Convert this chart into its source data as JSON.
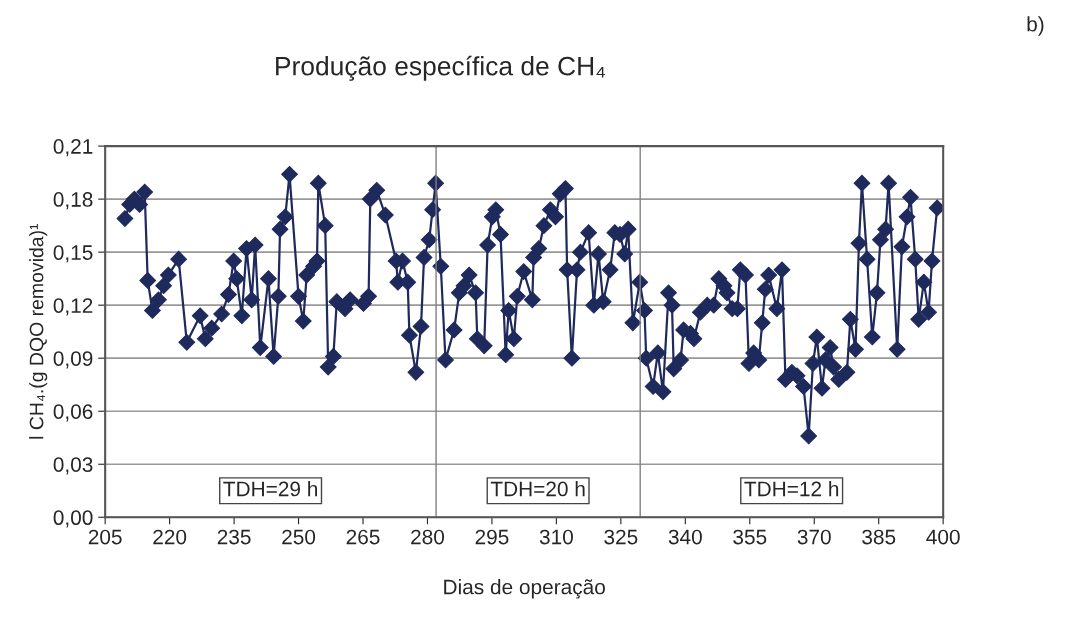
{
  "chart_data": {
    "type": "line",
    "title": "Produção específica de CH₄",
    "xlabel": "Dias de operação",
    "ylabel": "l CH₄.(g DQO removida)¹",
    "x": [
      209.6,
      210.7,
      211.8,
      213.0,
      214.2,
      214.9,
      216.0,
      217.4,
      218.6,
      219.7,
      222.1,
      224.0,
      227.1,
      228.3,
      229.8,
      232.1,
      233.7,
      234.9,
      235.6,
      236.8,
      237.9,
      239.1,
      239.9,
      241.1,
      243.0,
      244.2,
      245.3,
      245.7,
      246.9,
      247.9,
      250.0,
      251.1,
      251.9,
      253.5,
      254.3,
      254.6,
      256.2,
      256.9,
      258.1,
      258.9,
      260.8,
      262.0,
      265.1,
      266.3,
      266.7,
      268.2,
      270.2,
      272.7,
      273.1,
      274.2,
      275.4,
      275.8,
      277.3,
      278.5,
      279.2,
      280.4,
      281.2,
      281.9,
      283.1,
      284.2,
      286.2,
      287.4,
      288.5,
      289.7,
      291.2,
      291.6,
      293.2,
      294.0,
      295.1,
      295.9,
      297.0,
      298.2,
      298.9,
      300.1,
      300.9,
      302.4,
      304.4,
      304.7,
      305.9,
      307.1,
      308.6,
      309.8,
      310.9,
      312.1,
      312.5,
      313.6,
      314.8,
      315.6,
      317.5,
      318.7,
      319.8,
      320.9,
      322.5,
      323.6,
      324.8,
      325.9,
      326.7,
      327.8,
      329.4,
      330.5,
      330.9,
      332.5,
      333.6,
      334.8,
      336.1,
      336.9,
      337.3,
      338.9,
      339.6,
      341.2,
      342.0,
      343.5,
      345.1,
      346.6,
      347.8,
      349.0,
      349.7,
      350.9,
      352.1,
      352.8,
      354.0,
      354.8,
      355.9,
      357.1,
      357.9,
      358.6,
      359.4,
      361.3,
      362.5,
      363.3,
      364.8,
      366.0,
      367.5,
      368.7,
      369.7,
      370.6,
      371.8,
      372.6,
      373.7,
      374.5,
      375.7,
      377.6,
      378.4,
      379.6,
      380.4,
      381.1,
      382.3,
      383.5,
      384.6,
      385.4,
      386.6,
      387.3,
      389.3,
      390.4,
      391.6,
      392.4,
      393.5,
      394.3,
      395.5,
      396.6,
      397.4,
      398.6
    ],
    "values": [
      0.169,
      0.177,
      0.18,
      0.177,
      0.184,
      0.134,
      0.117,
      0.123,
      0.131,
      0.137,
      0.146,
      0.099,
      0.114,
      0.101,
      0.107,
      0.115,
      0.126,
      0.145,
      0.135,
      0.114,
      0.152,
      0.123,
      0.154,
      0.096,
      0.135,
      0.091,
      0.125,
      0.163,
      0.17,
      0.194,
      0.125,
      0.111,
      0.137,
      0.142,
      0.145,
      0.189,
      0.165,
      0.085,
      0.091,
      0.122,
      0.118,
      0.123,
      0.121,
      0.125,
      0.18,
      0.185,
      0.171,
      0.145,
      0.133,
      0.145,
      0.133,
      0.103,
      0.082,
      0.108,
      0.147,
      0.157,
      0.174,
      0.189,
      0.142,
      0.089,
      0.106,
      0.127,
      0.131,
      0.137,
      0.127,
      0.101,
      0.097,
      0.154,
      0.17,
      0.174,
      0.16,
      0.092,
      0.117,
      0.101,
      0.125,
      0.139,
      0.123,
      0.147,
      0.152,
      0.165,
      0.174,
      0.17,
      0.183,
      0.186,
      0.14,
      0.09,
      0.14,
      0.15,
      0.161,
      0.12,
      0.149,
      0.122,
      0.14,
      0.161,
      0.16,
      0.149,
      0.163,
      0.11,
      0.133,
      0.117,
      0.09,
      0.074,
      0.093,
      0.071,
      0.127,
      0.12,
      0.084,
      0.089,
      0.106,
      0.104,
      0.101,
      0.116,
      0.12,
      0.12,
      0.135,
      0.131,
      0.127,
      0.118,
      0.118,
      0.14,
      0.137,
      0.087,
      0.093,
      0.089,
      0.11,
      0.129,
      0.137,
      0.118,
      0.14,
      0.078,
      0.082,
      0.08,
      0.074,
      0.046,
      0.087,
      0.102,
      0.073,
      0.089,
      0.096,
      0.085,
      0.078,
      0.082,
      0.112,
      0.095,
      0.155,
      0.189,
      0.146,
      0.102,
      0.127,
      0.157,
      0.163,
      0.189,
      0.095,
      0.153,
      0.17,
      0.181,
      0.146,
      0.112,
      0.133,
      0.116,
      0.145,
      0.175
    ],
    "color": "#1f2a5c",
    "marker": "diamond",
    "line_style": "solid",
    "xlim": [
      205,
      400
    ],
    "xticks": [
      205,
      220,
      235,
      250,
      265,
      280,
      295,
      310,
      325,
      340,
      355,
      370,
      385,
      400
    ],
    "ylim": [
      0,
      0.21
    ],
    "yticks": [
      {
        "value": 0,
        "label": "0,00"
      },
      {
        "value": 0.03,
        "label": "0,03"
      },
      {
        "value": 0.06,
        "label": "0,06"
      },
      {
        "value": 0.09,
        "label": "0,09"
      },
      {
        "value": 0.12,
        "label": "0,12"
      },
      {
        "value": 0.15,
        "label": "0,15"
      },
      {
        "value": 0.18,
        "label": "0,18"
      },
      {
        "value": 0.21,
        "label": "0,21"
      }
    ],
    "grid": "y",
    "ref_lines": [
      {
        "axis": "x",
        "value": 282,
        "color": "#808080"
      },
      {
        "axis": "x",
        "value": 329.5,
        "color": "#808080"
      }
    ],
    "annotations": [
      "TDH=29 h",
      "TDH=20 h",
      "TDH=12 h",
      "b)"
    ]
  }
}
